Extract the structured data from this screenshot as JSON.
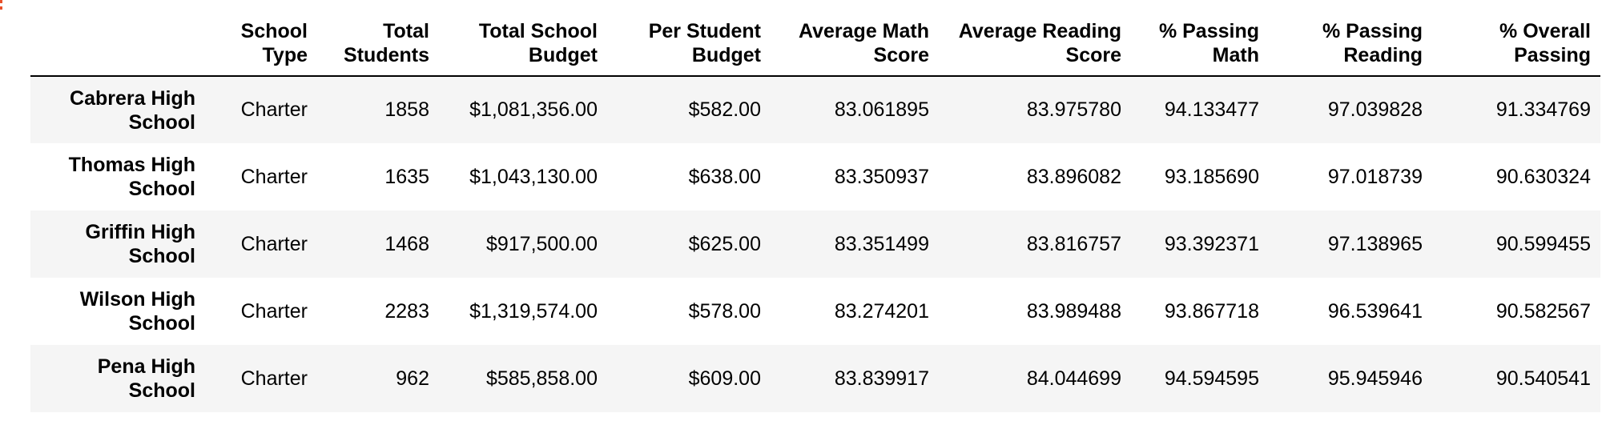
{
  "table": {
    "index_header": "",
    "columns": [
      [
        "School",
        "Type"
      ],
      [
        "Total",
        "Students"
      ],
      [
        "Total School",
        "Budget"
      ],
      [
        "Per Student",
        "Budget"
      ],
      [
        "Average Math",
        "Score"
      ],
      [
        "Average Reading",
        "Score"
      ],
      [
        "% Passing",
        "Math"
      ],
      [
        "% Passing",
        "Reading"
      ],
      [
        "% Overall",
        "Passing"
      ]
    ],
    "rows": [
      {
        "name": [
          "Cabrera High",
          "School"
        ],
        "values": [
          "Charter",
          "1858",
          "$1,081,356.00",
          "$582.00",
          "83.061895",
          "83.975780",
          "94.133477",
          "97.039828",
          "91.334769"
        ]
      },
      {
        "name": [
          "Thomas High",
          "School"
        ],
        "values": [
          "Charter",
          "1635",
          "$1,043,130.00",
          "$638.00",
          "83.350937",
          "83.896082",
          "93.185690",
          "97.018739",
          "90.630324"
        ]
      },
      {
        "name": [
          "Griffin High",
          "School"
        ],
        "values": [
          "Charter",
          "1468",
          "$917,500.00",
          "$625.00",
          "83.351499",
          "83.816757",
          "93.392371",
          "97.138965",
          "90.599455"
        ]
      },
      {
        "name": [
          "Wilson High",
          "School"
        ],
        "values": [
          "Charter",
          "2283",
          "$1,319,574.00",
          "$578.00",
          "83.274201",
          "83.989488",
          "93.867718",
          "96.539641",
          "90.582567"
        ]
      },
      {
        "name": [
          "Pena High",
          "School"
        ],
        "values": [
          "Charter",
          "962",
          "$585,858.00",
          "$609.00",
          "83.839917",
          "84.044699",
          "94.594595",
          "95.945946",
          "90.540541"
        ]
      }
    ]
  }
}
